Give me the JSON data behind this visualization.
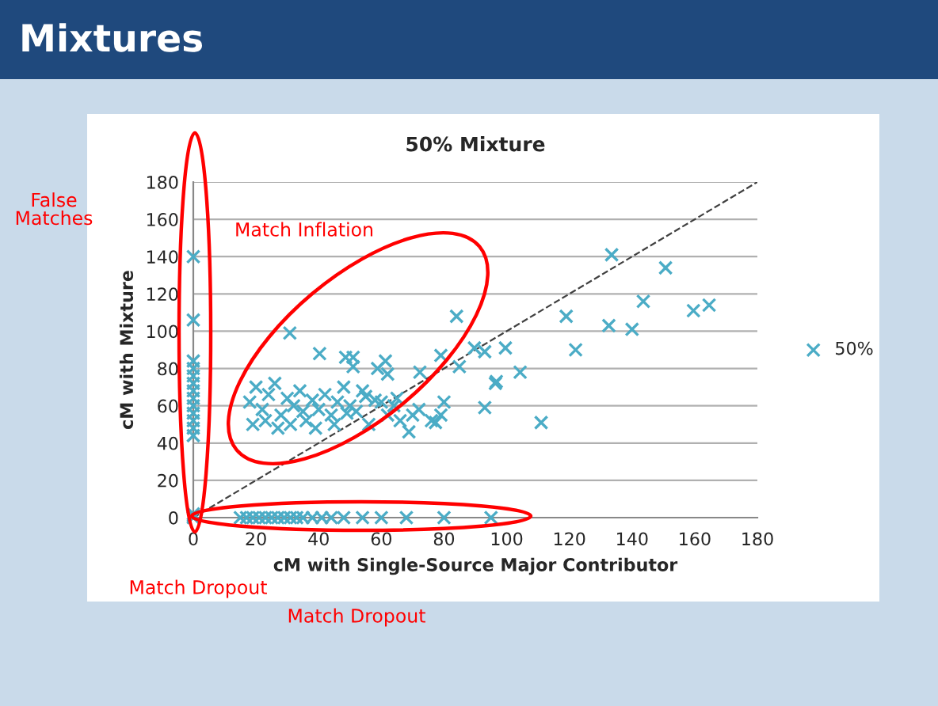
{
  "chart_data": {
    "type": "scatter",
    "title": "Mixtures",
    "subtitle": "50% Mixture",
    "xlabel": "cM with Single-Source Major Contributor",
    "ylabel": "cM with Mixture",
    "xlim": [
      0,
      180
    ],
    "ylim": [
      0,
      180
    ],
    "xticks": [
      0,
      20,
      40,
      60,
      80,
      100,
      120,
      140,
      160,
      180
    ],
    "yticks": [
      0,
      20,
      40,
      60,
      80,
      100,
      120,
      140,
      160,
      180
    ],
    "grid": "y",
    "legend": "right",
    "annotations": [
      "False Matches",
      "Match Inflation",
      "Match Dropout",
      "Match Dropout"
    ],
    "series": [
      {
        "name": "50%",
        "color": "#4bacc6",
        "marker": "cross",
        "x": [
          0,
          0,
          0,
          0,
          0,
          0,
          0,
          0,
          0,
          0,
          0,
          0,
          0,
          0,
          0,
          0,
          15,
          17,
          19,
          21,
          23,
          25,
          27,
          29,
          31,
          33,
          35,
          38,
          41,
          44,
          48,
          54,
          60,
          68,
          80,
          95,
          30.8,
          84,
          40.3,
          48.6,
          51,
          51,
          58.8,
          61.3,
          62,
          72.3,
          79,
          84.9,
          89.7,
          93,
          99.6,
          96.4,
          104.3,
          93,
          111,
          133.5,
          150.7,
          143.6,
          159.6,
          164.6,
          132.6,
          140,
          119,
          122,
          96.7,
          79,
          77.3,
          68.8,
          18,
          20,
          22,
          24,
          26,
          28,
          30,
          32,
          34,
          36,
          38,
          40,
          42,
          44,
          46,
          48,
          50,
          52,
          54,
          56,
          58,
          60,
          62,
          64,
          66,
          19,
          23,
          27,
          31,
          35,
          39,
          45,
          49,
          55,
          65,
          70,
          72,
          76,
          80
        ],
        "values": [
          140,
          106,
          84,
          80,
          76,
          72,
          68,
          64,
          60,
          56,
          52,
          48,
          44,
          2,
          1,
          0,
          0,
          0,
          0,
          0,
          0,
          0,
          0,
          0,
          0,
          0,
          0,
          0,
          0,
          0,
          0,
          0,
          0,
          0,
          0,
          0,
          99,
          108,
          88,
          86,
          86,
          81,
          80,
          84,
          77,
          78,
          87,
          81,
          91,
          89,
          91,
          72,
          78,
          59,
          51,
          141,
          134,
          116,
          111,
          114,
          103,
          101,
          108,
          90,
          73,
          55,
          51,
          46,
          62,
          70,
          58,
          66,
          72,
          55,
          64,
          60,
          68,
          52,
          63,
          58,
          66,
          55,
          62,
          70,
          60,
          57,
          68,
          50,
          63,
          62,
          55,
          60,
          52,
          50,
          52,
          48,
          50,
          57,
          48,
          50,
          56,
          65,
          64,
          55,
          58,
          52,
          62
        ]
      },
      {
        "type": "line",
        "color": "#404040",
        "line_style": "dashed",
        "x": [
          0,
          180
        ],
        "values": [
          0,
          180
        ]
      }
    ]
  }
}
